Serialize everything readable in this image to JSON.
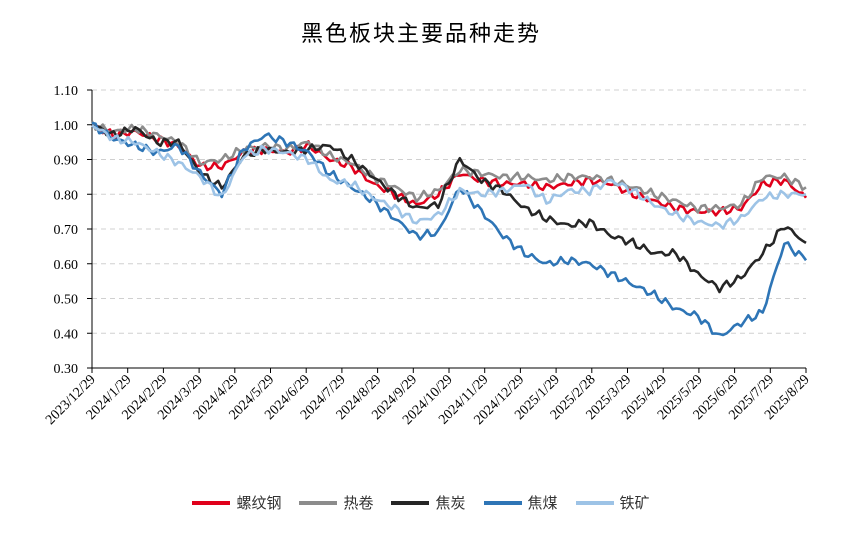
{
  "chart_data": {
    "type": "line",
    "title": "黑色板块主要品种走势",
    "xlabel": "",
    "ylabel": "",
    "ylim": [
      0.3,
      1.1
    ],
    "yticks": [
      "0.30",
      "0.40",
      "0.50",
      "0.60",
      "0.70",
      "0.80",
      "0.90",
      "1.00",
      "1.10"
    ],
    "grid": "horizontal dashed",
    "legend_position": "bottom",
    "x_tick_labels": [
      "2023/12/29",
      "2024/1/29",
      "2024/2/29",
      "2024/3/29",
      "2024/4/29",
      "2024/5/29",
      "2024/6/29",
      "2024/7/29",
      "2024/8/29",
      "2024/9/29",
      "2024/10/29",
      "2024/11/29",
      "2024/12/29",
      "2025/1/29",
      "2025/2/28",
      "2025/3/29",
      "2025/4/29",
      "2025/5/29",
      "2025/6/29",
      "2025/7/29",
      "2025/8/29"
    ],
    "series": [
      {
        "name": "螺纹钢",
        "color": "#e0001b",
        "values": [
          1.0,
          0.97,
          0.98,
          0.96,
          0.94,
          0.88,
          0.88,
          0.92,
          0.93,
          0.92,
          0.94,
          0.9,
          0.88,
          0.83,
          0.8,
          0.77,
          0.8,
          0.86,
          0.84,
          0.83,
          0.83,
          0.82,
          0.83,
          0.84,
          0.83,
          0.8,
          0.78,
          0.76,
          0.75,
          0.75,
          0.76,
          0.83,
          0.84,
          0.79
        ]
      },
      {
        "name": "热卷",
        "color": "#8c8c8c",
        "values": [
          1.0,
          0.98,
          0.99,
          0.97,
          0.95,
          0.89,
          0.9,
          0.93,
          0.94,
          0.93,
          0.95,
          0.91,
          0.89,
          0.85,
          0.82,
          0.79,
          0.81,
          0.87,
          0.86,
          0.85,
          0.85,
          0.84,
          0.85,
          0.85,
          0.84,
          0.82,
          0.8,
          0.78,
          0.76,
          0.76,
          0.77,
          0.85,
          0.85,
          0.82
        ]
      },
      {
        "name": "焦炭",
        "color": "#262626",
        "values": [
          1.0,
          0.97,
          0.99,
          0.95,
          0.95,
          0.86,
          0.82,
          0.91,
          0.93,
          0.92,
          0.93,
          0.94,
          0.9,
          0.85,
          0.8,
          0.76,
          0.77,
          0.9,
          0.84,
          0.81,
          0.76,
          0.73,
          0.71,
          0.72,
          0.68,
          0.66,
          0.63,
          0.63,
          0.57,
          0.53,
          0.56,
          0.63,
          0.71,
          0.66
        ]
      },
      {
        "name": "焦煤",
        "color": "#2e75b6",
        "values": [
          1.0,
          0.96,
          0.94,
          0.92,
          0.94,
          0.86,
          0.8,
          0.93,
          0.97,
          0.95,
          0.92,
          0.86,
          0.82,
          0.78,
          0.73,
          0.68,
          0.69,
          0.82,
          0.75,
          0.68,
          0.63,
          0.6,
          0.61,
          0.6,
          0.57,
          0.54,
          0.51,
          0.47,
          0.45,
          0.39,
          0.43,
          0.46,
          0.66,
          0.61
        ]
      },
      {
        "name": "铁矿",
        "color": "#9dc3e6",
        "values": [
          1.0,
          0.96,
          0.95,
          0.92,
          0.89,
          0.85,
          0.79,
          0.91,
          0.93,
          0.92,
          0.9,
          0.84,
          0.83,
          0.79,
          0.76,
          0.72,
          0.74,
          0.81,
          0.8,
          0.81,
          0.83,
          0.78,
          0.81,
          0.81,
          0.84,
          0.81,
          0.77,
          0.74,
          0.72,
          0.71,
          0.73,
          0.79,
          0.8,
          0.8
        ]
      }
    ]
  }
}
